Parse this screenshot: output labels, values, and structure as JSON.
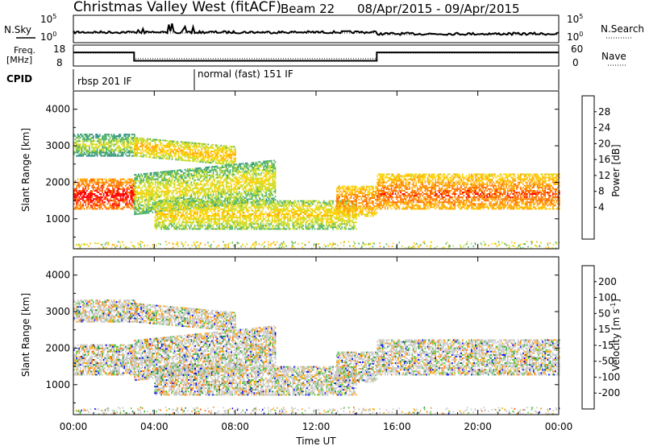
{
  "header": {
    "station": "Christmas Valley West (fitACF)",
    "beam": "Beam 22",
    "dates": "08/Apr/2015 - 09/Apr/2015"
  },
  "noise_panel": {
    "left_label": "N.Sky",
    "right_label": "N.Search",
    "left_ticks": [
      "10^5",
      "10^0"
    ],
    "right_ticks": [
      "10^5",
      "10^0"
    ]
  },
  "freq_panel": {
    "left_label_1": "Freq.",
    "left_label_2": "[MHz]",
    "right_label": "Nave",
    "left_ticks": [
      "18",
      "8"
    ],
    "right_ticks": [
      "60",
      "0"
    ]
  },
  "cpid": {
    "label": "CPID",
    "segments": [
      {
        "start_hour": 0,
        "end_hour": 6,
        "text": "rbsp 201 IF"
      },
      {
        "start_hour": 6,
        "end_hour": 24,
        "text": "normal (fast) 151 IF"
      }
    ]
  },
  "power_scale": {
    "title": "Power [dB]",
    "ticks": [
      "28",
      "24",
      "20",
      "16",
      "12",
      "8",
      "4"
    ],
    "colors": [
      "#ff0000",
      "#ff6a00",
      "#ffa500",
      "#ffd200",
      "#c8dc28",
      "#50b464",
      "#2d8c8c",
      "#1e46c8",
      "#0000ff"
    ]
  },
  "velocity_scale": {
    "title": "Velocity [m s^-1]",
    "ticks": [
      "200",
      "100",
      "50",
      "15",
      "-15",
      "-50",
      "-100",
      "-200"
    ],
    "colors": [
      "#0000ff",
      "#1e3cc8",
      "#238c46",
      "#50c832",
      "#c8c8c8",
      "#ffa500",
      "#ff6a00",
      "#ff3200",
      "#ff0000"
    ]
  },
  "chart_data": {
    "type": "heatmap",
    "title": "Christmas Valley West (fitACF) Beam 22 08/Apr/2015 - 09/Apr/2015",
    "xlabel": "Time UT",
    "ylabel": "Slant Range [km]",
    "x_ticks": [
      "00:00",
      "04:00",
      "08:00",
      "12:00",
      "16:00",
      "20:00",
      "00:00"
    ],
    "x_range_hours": [
      0,
      24
    ],
    "y_ticks": [
      1000,
      2000,
      3000,
      4000
    ],
    "y_range_km": [
      180,
      4500
    ],
    "frequency_mhz": [
      {
        "start_hour": 0,
        "end_hour": 3,
        "value": 14.5
      },
      {
        "start_hour": 3,
        "end_hour": 15,
        "value": 10.5
      },
      {
        "start_hour": 15,
        "end_hour": 24,
        "value": 14.5
      }
    ],
    "echo_regions": [
      {
        "start_hour": 0,
        "end_hour": 3,
        "range_km": [
          1250,
          2100
        ],
        "peak_km": 1600,
        "power_db": 24
      },
      {
        "start_hour": 0,
        "end_hour": 3,
        "range_km": [
          2700,
          3300
        ],
        "power_db": 8
      },
      {
        "start_hour": 3,
        "end_hour": 8,
        "range_km": [
          2700,
          3200
        ],
        "power_db": 14
      },
      {
        "start_hour": 3,
        "end_hour": 10,
        "range_km": [
          1100,
          2200
        ],
        "power_db": 10
      },
      {
        "start_hour": 4,
        "end_hour": 14,
        "range_km": [
          700,
          1500
        ],
        "power_db": 12
      },
      {
        "start_hour": 13,
        "end_hour": 15,
        "range_km": [
          1050,
          1900
        ],
        "power_db": 18
      },
      {
        "start_hour": 15,
        "end_hour": 24,
        "range_km": [
          1250,
          2200
        ],
        "peak_km": 1650,
        "power_db": 20
      }
    ]
  }
}
